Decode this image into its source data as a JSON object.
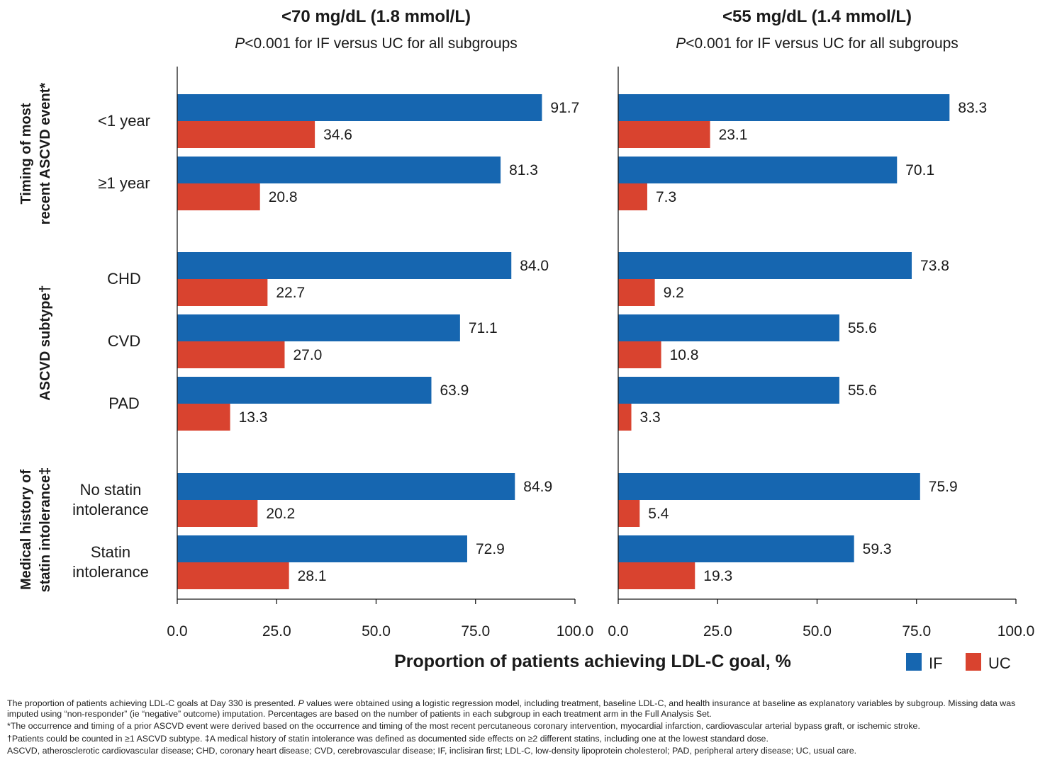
{
  "colors": {
    "IF": "#1666b0",
    "UC": "#d9432f",
    "axis": "#1a1a1a"
  },
  "chart_data": [
    {
      "type": "bar",
      "orientation": "horizontal",
      "title": "<70 mg/dL (1.8 mmol/L)",
      "subtitle_italic": "P",
      "subtitle_rest": "<0.001 for IF versus UC for all subgroups",
      "xlim": [
        0,
        100
      ],
      "xticks": [
        "0.0",
        "25.0",
        "50.0",
        "75.0",
        "100.0"
      ],
      "categories": [
        "<1 year",
        "≥1 year",
        "CHD",
        "CVD",
        "PAD",
        "No statin intolerance",
        "Statin intolerance"
      ],
      "series": [
        {
          "name": "IF",
          "values": [
            91.7,
            81.3,
            84.0,
            71.1,
            63.9,
            84.9,
            72.9
          ],
          "labels": [
            "91.7",
            "81.3",
            "84.0",
            "71.1",
            "63.9",
            "84.9",
            "72.9"
          ]
        },
        {
          "name": "UC",
          "values": [
            34.6,
            20.8,
            22.7,
            27.0,
            13.3,
            20.2,
            28.1
          ],
          "labels": [
            "34.6",
            "20.8",
            "22.7",
            "27.0",
            "13.3",
            "20.2",
            "28.1"
          ]
        }
      ]
    },
    {
      "type": "bar",
      "orientation": "horizontal",
      "title": "<55 mg/dL (1.4 mmol/L)",
      "subtitle_italic": "P",
      "subtitle_rest": "<0.001 for IF versus UC for all subgroups",
      "xlim": [
        0,
        100
      ],
      "xticks": [
        "0.0",
        "25.0",
        "50.0",
        "75.0",
        "100.0"
      ],
      "categories": [
        "<1 year",
        "≥1 year",
        "CHD",
        "CVD",
        "PAD",
        "No statin intolerance",
        "Statin intolerance"
      ],
      "series": [
        {
          "name": "IF",
          "values": [
            83.3,
            70.1,
            73.8,
            55.6,
            55.6,
            75.9,
            59.3
          ],
          "labels": [
            "83.3",
            "70.1",
            "73.8",
            "55.6",
            "55.6",
            "75.9",
            "59.3"
          ]
        },
        {
          "name": "UC",
          "values": [
            23.1,
            7.3,
            9.2,
            10.8,
            3.3,
            5.4,
            19.3
          ],
          "labels": [
            "23.1",
            "7.3",
            "9.2",
            "10.8",
            "3.3",
            "5.4",
            "19.3"
          ]
        }
      ]
    }
  ],
  "category_display": [
    [
      "<1 year"
    ],
    [
      "≥1 year"
    ],
    [
      "CHD"
    ],
    [
      "CVD"
    ],
    [
      "PAD"
    ],
    [
      "No statin",
      "intolerance"
    ],
    [
      "Statin",
      "intolerance"
    ]
  ],
  "groups": [
    {
      "lines": [
        "Timing of most",
        "recent ASCVD event*"
      ]
    },
    {
      "lines": [
        "ASCVD subtype†"
      ]
    },
    {
      "lines": [
        "Medical history of",
        "statin intolerance‡"
      ]
    }
  ],
  "xlabel": "Proportion of patients achieving LDL-C goal, %",
  "legend": [
    {
      "name": "IF"
    },
    {
      "name": "UC"
    }
  ],
  "footnotes": {
    "line1_pre": "The proportion of patients achieving LDL-C goals at Day 330 is presented. ",
    "line1_italic": "P",
    "line1_post": " values were obtained using a logistic regression model, including treatment, baseline LDL-C, and health insurance at baseline as explanatory variables by subgroup. Missing data was imputed using “non-responder” (ie “negative” outcome) imputation. Percentages are based on the number of patients in each subgroup in each treatment arm in the Full Analysis Set.",
    "line2": "*The occurrence and timing of a prior ASCVD event were derived based on the occurrence and timing of the most recent percutaneous coronary intervention, myocardial infarction, cardiovascular arterial bypass graft, or ischemic stroke.",
    "line3": "†Patients could be counted in ≥1 ASCVD subtype. ‡A medical history of statin intolerance was defined as documented side effects on ≥2 different statins, including one at the lowest standard dose.",
    "line4": "ASCVD, atherosclerotic cardiovascular disease; CHD, coronary heart disease; CVD, cerebrovascular disease; IF, inclisiran first; LDL-C, low-density lipoprotein cholesterol; PAD, peripheral artery disease; UC, usual care."
  }
}
